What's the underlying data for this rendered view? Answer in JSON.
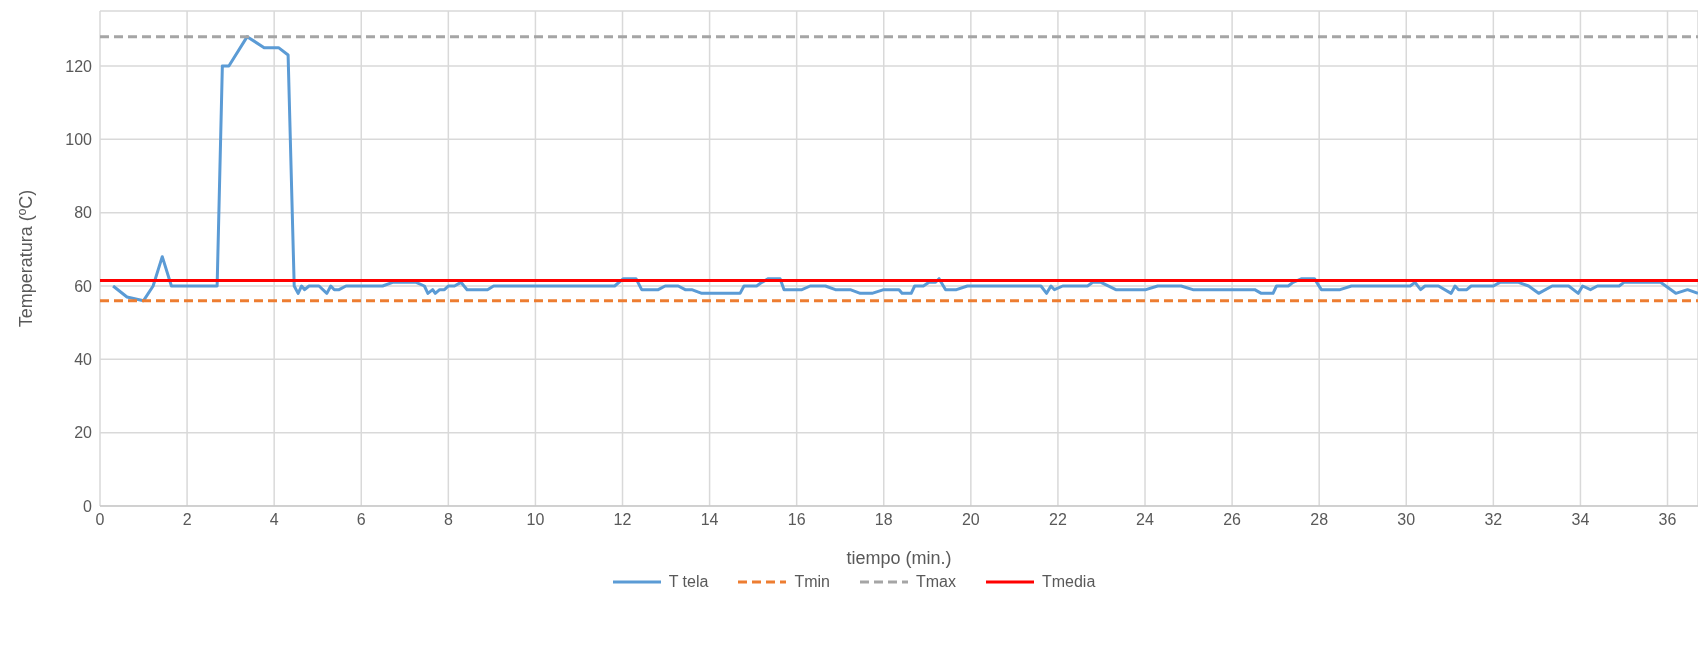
{
  "chart_data": {
    "type": "line",
    "xlabel": "tiempo (min.)",
    "ylabel": "Temperatura (ºC)",
    "xlim": [
      0,
      36.7
    ],
    "xticks": [
      0,
      2,
      4,
      6,
      8,
      10,
      12,
      14,
      16,
      18,
      20,
      22,
      24,
      26,
      28,
      30,
      32,
      34,
      36
    ],
    "ylim": [
      0,
      135
    ],
    "yticks": [
      0,
      20,
      40,
      60,
      80,
      100,
      120
    ],
    "grid": true,
    "legend": "bottom",
    "marker": "none",
    "series": [
      {
        "name": "T tela",
        "color": "#5b9bd5",
        "line_style": "solid",
        "x": [
          0.3,
          0.62,
          1.0,
          1.22,
          1.43,
          1.64,
          2.69,
          2.81,
          2.96,
          3.38,
          3.77,
          4.1,
          4.32,
          4.46,
          4.55,
          4.63,
          4.7,
          4.8,
          5.03,
          5.21,
          5.3,
          5.38,
          5.49,
          5.65,
          6.49,
          6.72,
          7.26,
          7.45,
          7.53,
          7.64,
          7.7,
          7.8,
          7.91,
          8.0,
          8.14,
          8.29,
          8.43,
          8.9,
          9.04,
          11.82,
          12.02,
          12.31,
          12.44,
          12.82,
          12.98,
          13.28,
          13.44,
          13.59,
          13.82,
          14.7,
          14.79,
          15.08,
          15.2,
          15.35,
          15.62,
          15.71,
          16.12,
          16.31,
          16.66,
          16.89,
          17.23,
          17.46,
          17.73,
          18.0,
          18.35,
          18.42,
          18.63,
          18.71,
          18.91,
          19.04,
          19.19,
          19.27,
          19.42,
          19.67,
          19.92,
          21.61,
          21.74,
          21.84,
          21.92,
          22.11,
          22.68,
          22.8,
          22.99,
          23.33,
          24.02,
          24.29,
          24.83,
          25.1,
          26.52,
          26.67,
          26.94,
          27.02,
          27.29,
          27.4,
          27.6,
          27.89,
          28.05,
          28.48,
          28.74,
          30.09,
          30.2,
          30.33,
          30.43,
          30.74,
          31.03,
          31.12,
          31.2,
          31.39,
          31.49,
          32.0,
          32.15,
          32.58,
          32.81,
          33.04,
          33.35,
          33.73,
          33.95,
          34.05,
          34.23,
          34.39,
          34.89,
          35.0,
          35.84,
          36.19,
          36.46,
          36.7
        ],
        "values": [
          60,
          57,
          56,
          60,
          68,
          60,
          60,
          120,
          120,
          128,
          125,
          125,
          123,
          60,
          58,
          60,
          59,
          60,
          60,
          58,
          60,
          59,
          59,
          60,
          60,
          61,
          61,
          60,
          58,
          59,
          58,
          59,
          59,
          60,
          60,
          61,
          59,
          59,
          60,
          60,
          62,
          62,
          59,
          59,
          60,
          60,
          59,
          59,
          58,
          58,
          60,
          60,
          61,
          62,
          62,
          59,
          59,
          60,
          60,
          59,
          59,
          58,
          58,
          59,
          59,
          58,
          58,
          60,
          60,
          61,
          61,
          62,
          59,
          59,
          60,
          60,
          58,
          60,
          59,
          60,
          60,
          61,
          61,
          59,
          59,
          60,
          60,
          59,
          59,
          58,
          58,
          60,
          60,
          61,
          62,
          62,
          59,
          59,
          60,
          60,
          61,
          59,
          60,
          60,
          58,
          60,
          59,
          59,
          60,
          60,
          61,
          61,
          60,
          58,
          60,
          60,
          58,
          60,
          59,
          60,
          60,
          61,
          61,
          58,
          59,
          58
        ]
      },
      {
        "name": "Tmin",
        "color": "#ed7d31",
        "line_style": "dashed",
        "x": [
          0,
          36.7
        ],
        "values": [
          56,
          56
        ]
      },
      {
        "name": "Tmax",
        "color": "#a5a5a5",
        "line_style": "dashed",
        "x": [
          0,
          36.7
        ],
        "values": [
          128,
          128
        ]
      },
      {
        "name": "Tmedia",
        "color": "#ff0000",
        "line_style": "solid",
        "x": [
          0,
          36.7
        ],
        "values": [
          61.5,
          61.5
        ]
      }
    ]
  }
}
